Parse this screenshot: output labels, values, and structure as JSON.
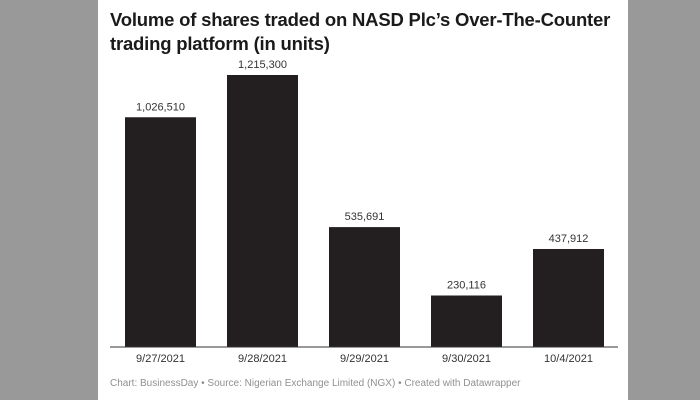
{
  "chart_data": {
    "type": "bar",
    "title": "Volume of shares traded on NASD Plc’s Over-The-Counter trading platform (in units)",
    "categories": [
      "9/27/2021",
      "9/28/2021",
      "9/29/2021",
      "9/30/2021",
      "10/4/2021"
    ],
    "values": [
      1026510,
      1215300,
      535691,
      230116,
      437912
    ],
    "value_labels": [
      "1,026,510",
      "1,215,300",
      "535,691",
      "230,116",
      "437,912"
    ],
    "xlabel": "",
    "ylabel": "",
    "ylim": [
      0,
      1215300
    ],
    "grid": false,
    "bar_color": "#231f20"
  },
  "footer": {
    "text": "Chart: BusinessDay • Source: Nigerian Exchange Limited (NGX) • Created with Datawrapper"
  }
}
